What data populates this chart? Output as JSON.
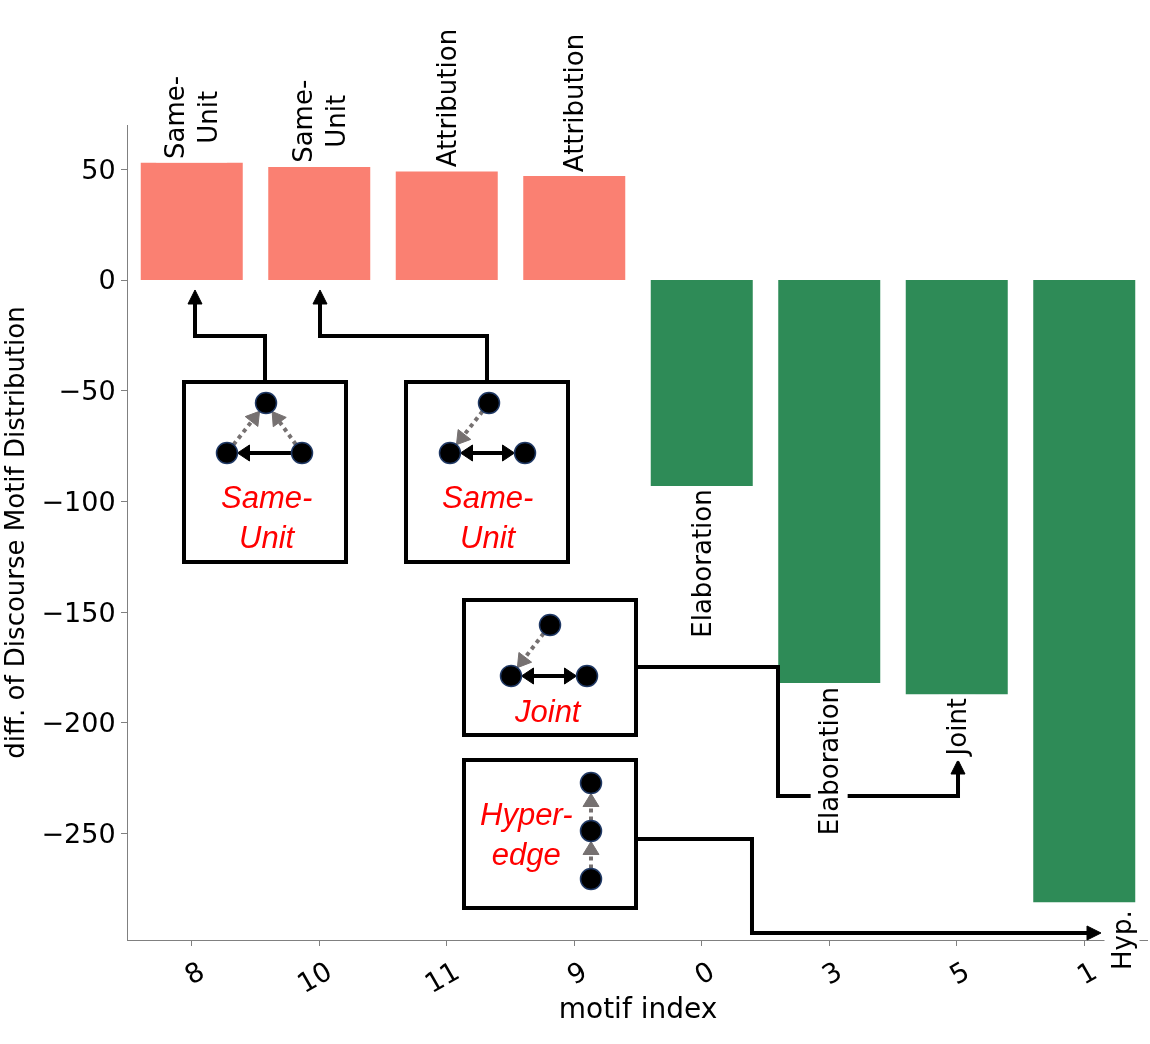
{
  "chart_data": {
    "type": "bar",
    "xlabel": "motif index",
    "ylabel": "diff. of Discourse Motif Distribution",
    "categories": [
      "8",
      "10",
      "11",
      "9",
      "0",
      "3",
      "5",
      "1"
    ],
    "values": [
      53,
      51,
      49,
      47,
      -93,
      -182,
      -187,
      -281
    ],
    "colors": [
      "#fa8072",
      "#fa8072",
      "#fa8072",
      "#fa8072",
      "#2e8b57",
      "#2e8b57",
      "#2e8b57",
      "#2e8b57"
    ],
    "ylim": [
      -298,
      70
    ],
    "yticks": [
      {
        "value": -250,
        "label": "−250"
      },
      {
        "value": -200,
        "label": "−200"
      },
      {
        "value": -150,
        "label": "−150"
      },
      {
        "value": -100,
        "label": "−100"
      },
      {
        "value": -50,
        "label": "−50"
      },
      0,
      50
    ],
    "annotations": [
      {
        "text": "Same-\nUnit",
        "x": "8",
        "y": 53
      },
      {
        "text": "Same-\nUnit",
        "x": "10",
        "y": 51
      },
      {
        "text": "Attribution",
        "x": "11",
        "y": 49
      },
      {
        "text": "Attribution",
        "x": "9",
        "y": 47
      },
      {
        "text": "Elaboration",
        "x": "0",
        "y": -93
      },
      {
        "text": "Elaboration",
        "x": "3",
        "y": -182
      },
      {
        "text": "Joint",
        "x": "5",
        "y": -187
      },
      "Same-\nUnit",
      "Same-\nUnit",
      "Joint",
      "Hyper-\nedge",
      "Hyp."
    ]
  }
}
